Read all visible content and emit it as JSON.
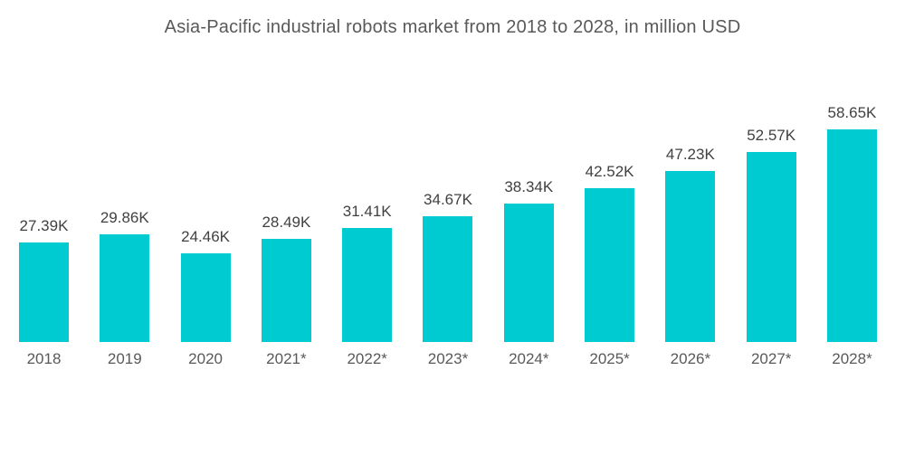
{
  "title": "Asia-Pacific industrial robots market from 2018 to 2028, in million USD",
  "colors": {
    "bar": "#00CBD1",
    "title_text": "#58595B",
    "value_label_text": "#414042",
    "axis_label_text": "#58595B",
    "background": "#FFFFFF"
  },
  "chart_data": {
    "type": "bar",
    "title": "Asia-Pacific industrial robots market from 2018 to 2028, in million USD",
    "categories": [
      "2018",
      "2019",
      "2020",
      "2021*",
      "2022*",
      "2023*",
      "2024*",
      "2025*",
      "2026*",
      "2027*",
      "2028*"
    ],
    "values": [
      27.39,
      29.86,
      24.46,
      28.49,
      31.41,
      34.67,
      38.34,
      42.52,
      47.23,
      52.57,
      58.65
    ],
    "value_labels": [
      "27.39K",
      "29.86K",
      "24.46K",
      "28.49K",
      "31.41K",
      "34.67K",
      "38.34K",
      "42.52K",
      "47.23K",
      "52.57K",
      "58.65K"
    ],
    "unit": "K (thousand) million USD",
    "xlabel": "",
    "ylabel": "",
    "ylim": [
      0,
      60
    ],
    "grid": false,
    "axes_visible": false,
    "legend_position": "none",
    "bar_labels_position": "above"
  }
}
